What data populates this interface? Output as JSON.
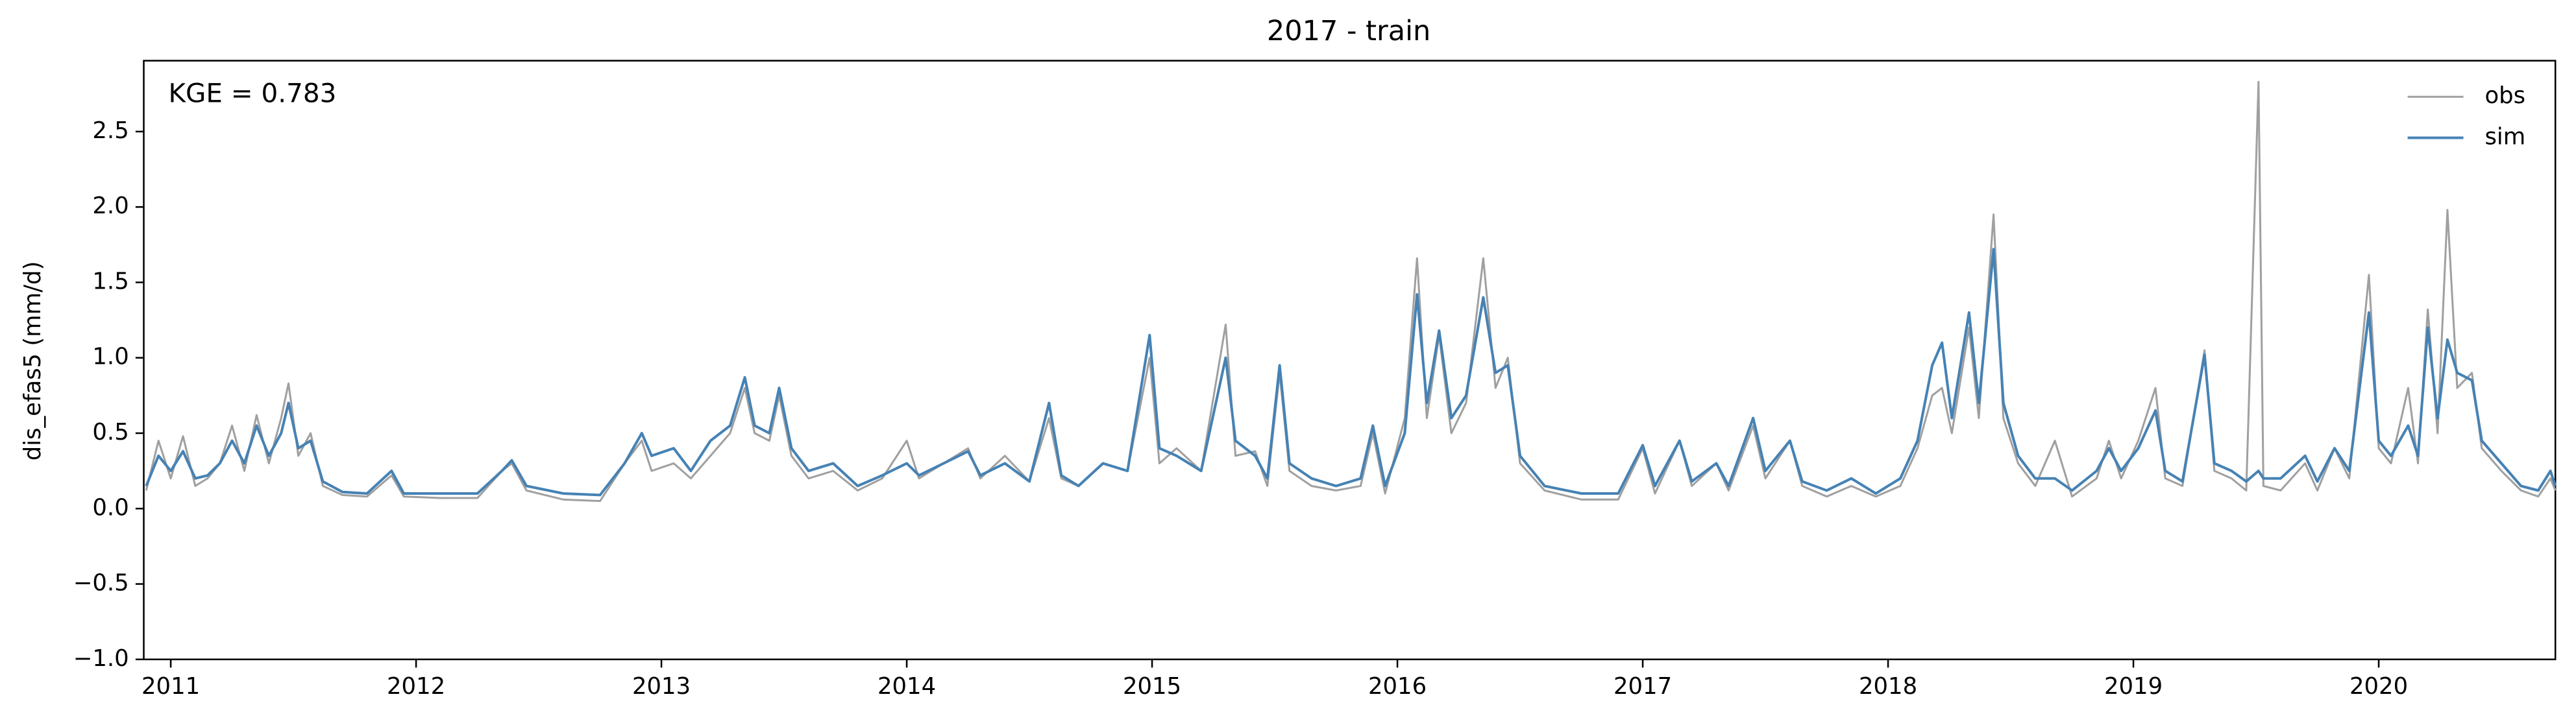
{
  "chart_data": {
    "type": "line",
    "title": "2017 - train",
    "ylabel": "dis_efas5 (mm/d)",
    "annotation": "KGE = 0.783",
    "legend": "upper right",
    "x": [
      2010.9,
      2010.95,
      2011.0,
      2011.05,
      2011.1,
      2011.15,
      2011.2,
      2011.25,
      2011.3,
      2011.35,
      2011.4,
      2011.45,
      2011.48,
      2011.52,
      2011.57,
      2011.62,
      2011.7,
      2011.8,
      2011.9,
      2011.95,
      2012.1,
      2012.25,
      2012.35,
      2012.39,
      2012.45,
      2012.6,
      2012.75,
      2012.85,
      2012.92,
      2012.96,
      2013.05,
      2013.12,
      2013.2,
      2013.28,
      2013.34,
      2013.38,
      2013.44,
      2013.48,
      2013.53,
      2013.6,
      2013.7,
      2013.8,
      2013.9,
      2014.0,
      2014.05,
      2014.15,
      2014.25,
      2014.3,
      2014.4,
      2014.5,
      2014.58,
      2014.63,
      2014.7,
      2014.8,
      2014.9,
      2014.99,
      2015.03,
      2015.1,
      2015.2,
      2015.3,
      2015.34,
      2015.42,
      2015.47,
      2015.52,
      2015.56,
      2015.65,
      2015.75,
      2015.85,
      2015.9,
      2015.95,
      2016.03,
      2016.08,
      2016.12,
      2016.17,
      2016.22,
      2016.28,
      2016.35,
      2016.4,
      2016.45,
      2016.5,
      2016.6,
      2016.75,
      2016.9,
      2017.0,
      2017.05,
      2017.15,
      2017.2,
      2017.3,
      2017.35,
      2017.45,
      2017.5,
      2017.6,
      2017.65,
      2017.75,
      2017.85,
      2017.95,
      2018.05,
      2018.12,
      2018.18,
      2018.22,
      2018.26,
      2018.33,
      2018.37,
      2018.43,
      2018.47,
      2018.53,
      2018.6,
      2018.68,
      2018.75,
      2018.85,
      2018.9,
      2018.95,
      2019.02,
      2019.09,
      2019.13,
      2019.2,
      2019.29,
      2019.33,
      2019.4,
      2019.46,
      2019.51,
      2019.53,
      2019.6,
      2019.7,
      2019.75,
      2019.82,
      2019.88,
      2019.96,
      2020.0,
      2020.05,
      2020.12,
      2020.16,
      2020.2,
      2020.24,
      2020.28,
      2020.32,
      2020.38,
      2020.42,
      2020.5,
      2020.58,
      2020.65,
      2020.7,
      2020.72
    ],
    "series": [
      {
        "name": "obs",
        "color": "#a0a0a0",
        "values": [
          0.12,
          0.45,
          0.2,
          0.48,
          0.15,
          0.2,
          0.3,
          0.55,
          0.25,
          0.62,
          0.3,
          0.6,
          0.83,
          0.35,
          0.5,
          0.15,
          0.09,
          0.08,
          0.22,
          0.08,
          0.07,
          0.07,
          0.25,
          0.3,
          0.12,
          0.06,
          0.05,
          0.3,
          0.45,
          0.25,
          0.3,
          0.2,
          0.35,
          0.5,
          0.8,
          0.5,
          0.45,
          0.75,
          0.35,
          0.2,
          0.25,
          0.12,
          0.2,
          0.45,
          0.2,
          0.3,
          0.4,
          0.2,
          0.35,
          0.18,
          0.6,
          0.2,
          0.15,
          0.3,
          0.25,
          1.0,
          0.3,
          0.4,
          0.25,
          1.22,
          0.35,
          0.38,
          0.15,
          0.9,
          0.25,
          0.15,
          0.12,
          0.15,
          0.5,
          0.1,
          0.6,
          1.66,
          0.6,
          1.15,
          0.5,
          0.7,
          1.66,
          0.8,
          1.0,
          0.3,
          0.12,
          0.06,
          0.06,
          0.4,
          0.1,
          0.45,
          0.15,
          0.3,
          0.12,
          0.55,
          0.2,
          0.45,
          0.15,
          0.08,
          0.15,
          0.08,
          0.15,
          0.4,
          0.75,
          0.8,
          0.5,
          1.2,
          0.6,
          1.95,
          0.6,
          0.3,
          0.15,
          0.45,
          0.08,
          0.2,
          0.45,
          0.2,
          0.45,
          0.8,
          0.2,
          0.15,
          1.05,
          0.25,
          0.2,
          0.12,
          2.83,
          0.15,
          0.12,
          0.3,
          0.12,
          0.4,
          0.2,
          1.55,
          0.4,
          0.3,
          0.8,
          0.3,
          1.32,
          0.5,
          1.98,
          0.8,
          0.9,
          0.4,
          0.25,
          0.12,
          0.08,
          0.2,
          0.12
        ]
      },
      {
        "name": "sim",
        "color": "#4682b4",
        "values": [
          0.15,
          0.35,
          0.25,
          0.38,
          0.2,
          0.22,
          0.3,
          0.45,
          0.3,
          0.55,
          0.35,
          0.5,
          0.7,
          0.4,
          0.45,
          0.18,
          0.11,
          0.1,
          0.25,
          0.1,
          0.1,
          0.1,
          0.25,
          0.32,
          0.15,
          0.1,
          0.09,
          0.3,
          0.5,
          0.35,
          0.4,
          0.25,
          0.45,
          0.55,
          0.87,
          0.55,
          0.5,
          0.8,
          0.4,
          0.25,
          0.3,
          0.15,
          0.22,
          0.3,
          0.22,
          0.3,
          0.38,
          0.22,
          0.3,
          0.18,
          0.7,
          0.22,
          0.15,
          0.3,
          0.25,
          1.15,
          0.4,
          0.35,
          0.25,
          1.0,
          0.45,
          0.35,
          0.2,
          0.95,
          0.3,
          0.2,
          0.15,
          0.2,
          0.55,
          0.15,
          0.5,
          1.42,
          0.7,
          1.18,
          0.6,
          0.75,
          1.4,
          0.9,
          0.95,
          0.35,
          0.15,
          0.1,
          0.1,
          0.42,
          0.15,
          0.45,
          0.18,
          0.3,
          0.15,
          0.6,
          0.25,
          0.45,
          0.18,
          0.12,
          0.2,
          0.1,
          0.2,
          0.45,
          0.95,
          1.1,
          0.6,
          1.3,
          0.7,
          1.72,
          0.7,
          0.35,
          0.2,
          0.2,
          0.12,
          0.25,
          0.4,
          0.25,
          0.4,
          0.65,
          0.25,
          0.18,
          1.02,
          0.3,
          0.25,
          0.18,
          0.25,
          0.2,
          0.2,
          0.35,
          0.18,
          0.4,
          0.25,
          1.3,
          0.45,
          0.35,
          0.55,
          0.35,
          1.2,
          0.6,
          1.12,
          0.9,
          0.85,
          0.45,
          0.3,
          0.15,
          0.12,
          0.25,
          0.15
        ]
      }
    ],
    "xlim": [
      2010.89,
      2020.72
    ],
    "xticks": [
      2011,
      2012,
      2013,
      2014,
      2015,
      2016,
      2017,
      2018,
      2019,
      2020
    ],
    "ylim": [
      -1,
      2.97
    ],
    "yticks": [
      {
        "value": -1,
        "label": "−1.0"
      },
      {
        "value": -0.5,
        "label": "−0.5"
      },
      {
        "value": 0,
        "label": "0.0"
      },
      0.5,
      {
        "value": 1,
        "label": "1.0"
      },
      1.5,
      {
        "value": 2,
        "label": "2.0"
      },
      2.5
    ],
    "grid": false
  }
}
